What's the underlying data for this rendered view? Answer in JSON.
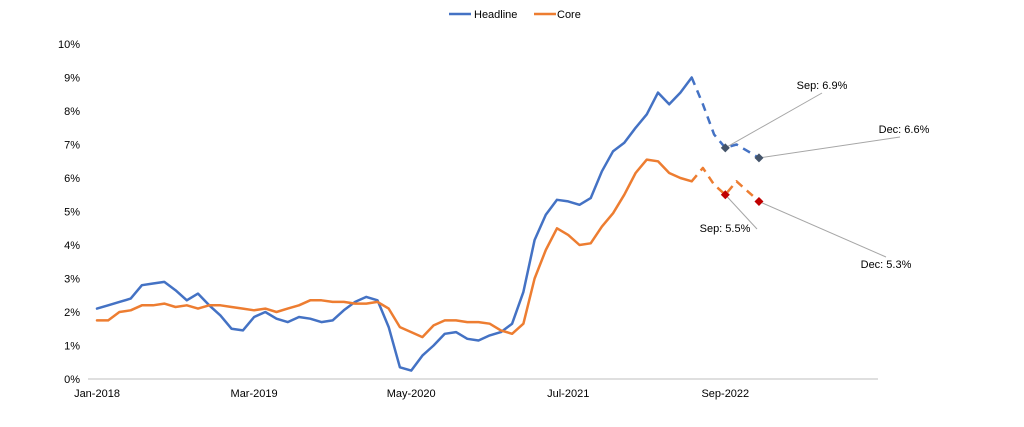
{
  "chart_data": {
    "type": "line",
    "title": "",
    "xlabel": "",
    "ylabel": "",
    "ylim": [
      0,
      10
    ],
    "y_ticks": [
      "0%",
      "1%",
      "2%",
      "3%",
      "4%",
      "5%",
      "6%",
      "7%",
      "8%",
      "9%",
      "10%"
    ],
    "x_tick_labels": [
      "Jan-2018",
      "Mar-2019",
      "May-2020",
      "Jul-2021",
      "Sep-2022"
    ],
    "x_start": "Jan-2018",
    "x_frequency": "monthly",
    "grid": false,
    "legend": "top-center",
    "series": [
      {
        "name": "Headline",
        "color": "#4472C4",
        "actual": [
          2.1,
          2.2,
          2.3,
          2.4,
          2.8,
          2.85,
          2.9,
          2.65,
          2.35,
          2.55,
          2.2,
          1.9,
          1.5,
          1.45,
          1.85,
          2.0,
          1.8,
          1.7,
          1.85,
          1.8,
          1.7,
          1.75,
          2.05,
          2.3,
          2.45,
          2.35,
          1.55,
          0.35,
          0.25,
          0.7,
          1.0,
          1.35,
          1.4,
          1.2,
          1.15,
          1.3,
          1.4,
          1.65,
          2.6,
          4.15,
          4.9,
          5.35,
          5.3,
          5.2,
          5.4,
          6.2,
          6.8,
          7.05,
          7.5,
          7.9,
          8.55,
          8.2,
          8.55,
          9.0
        ],
        "forecast": [
          9.0,
          8.2,
          7.3,
          6.9,
          7.0,
          6.8,
          6.6
        ],
        "markers": [
          {
            "label": "Sep: 6.9%",
            "x": "Sep-2022",
            "y": 6.9
          },
          {
            "label": "Dec: 6.6%",
            "x": "Dec-2022",
            "y": 6.6
          }
        ]
      },
      {
        "name": "Core",
        "color": "#ED7D31",
        "actual": [
          1.75,
          1.75,
          2.0,
          2.05,
          2.2,
          2.2,
          2.25,
          2.15,
          2.2,
          2.1,
          2.2,
          2.2,
          2.15,
          2.1,
          2.05,
          2.1,
          2.0,
          2.1,
          2.2,
          2.35,
          2.35,
          2.3,
          2.3,
          2.25,
          2.25,
          2.3,
          2.1,
          1.55,
          1.4,
          1.25,
          1.6,
          1.75,
          1.75,
          1.7,
          1.7,
          1.65,
          1.45,
          1.35,
          1.65,
          3.0,
          3.85,
          4.5,
          4.3,
          4.0,
          4.05,
          4.55,
          4.95,
          5.5,
          6.15,
          6.55,
          6.5,
          6.15,
          6.0,
          5.9
        ],
        "forecast": [
          5.9,
          6.3,
          5.8,
          5.5,
          5.9,
          5.6,
          5.3
        ],
        "markers": [
          {
            "label": "Sep: 5.5%",
            "x": "Sep-2022",
            "y": 5.5
          },
          {
            "label": "Dec: 5.3%",
            "x": "Dec-2022",
            "y": 5.3
          }
        ]
      }
    ]
  }
}
